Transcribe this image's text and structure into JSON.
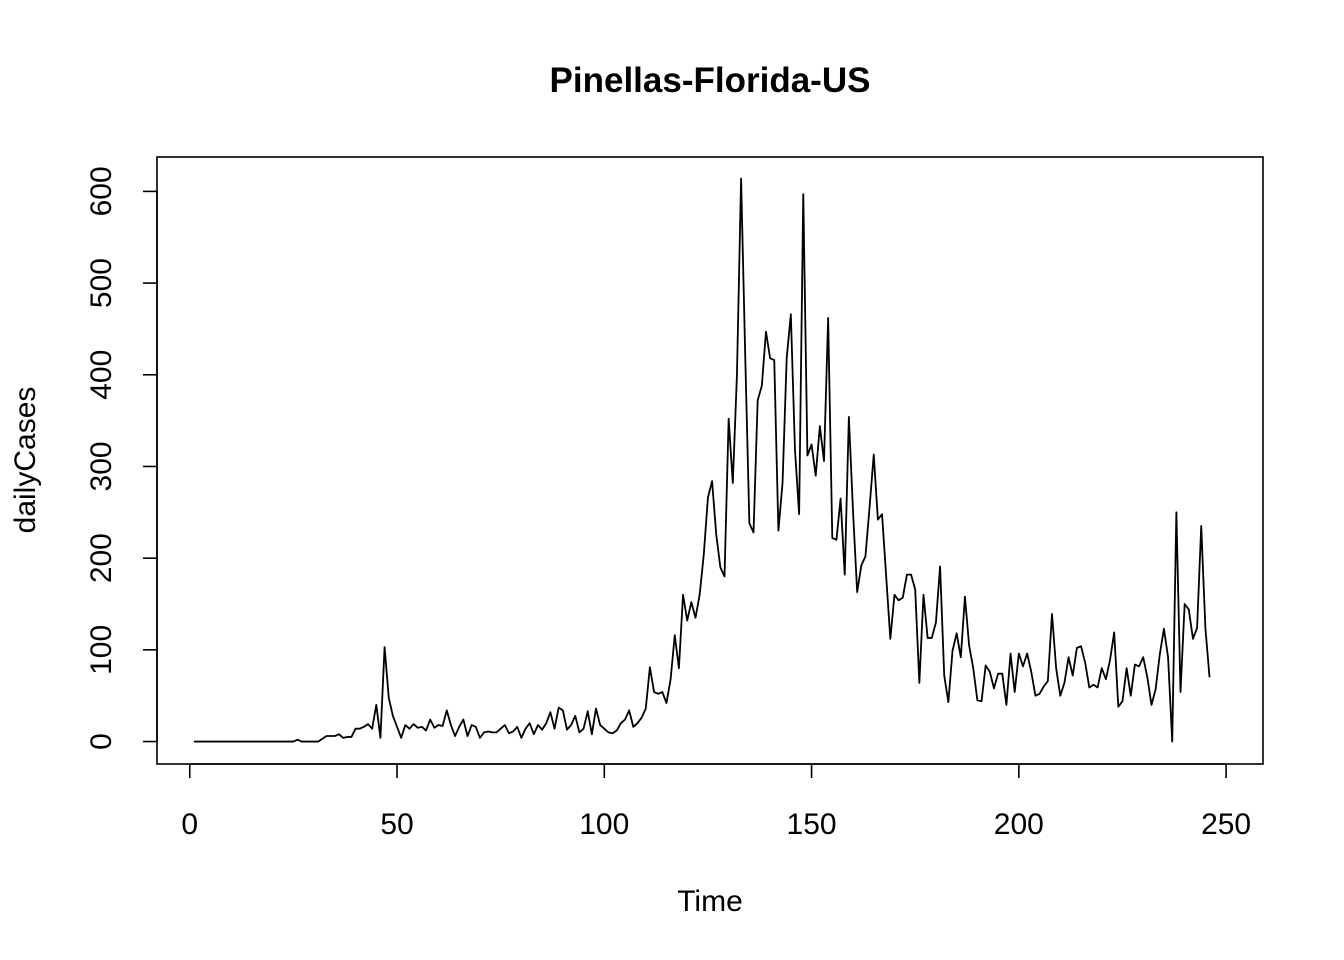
{
  "chart_data": {
    "type": "line",
    "title": "Pinellas-Florida-US",
    "xlabel": "Time",
    "ylabel": "dailyCases",
    "xlim": [
      -7.9,
      258.9
    ],
    "ylim": [
      -24.5,
      637.5
    ],
    "x_ticks": [
      0,
      50,
      100,
      150,
      200,
      250
    ],
    "y_ticks": [
      0,
      100,
      200,
      300,
      400,
      500,
      600
    ],
    "x_tick_labels": [
      "0",
      "50",
      "100",
      "150",
      "200",
      "250"
    ],
    "y_tick_labels": [
      "0",
      "100",
      "200",
      "300",
      "400",
      "500",
      "600"
    ],
    "grid": false,
    "legend": "none",
    "line_color": "#000000",
    "series": [
      {
        "x_start": 1,
        "x_step": 1,
        "values": [
          0,
          0,
          0,
          0,
          0,
          0,
          0,
          0,
          0,
          0,
          0,
          0,
          0,
          0,
          0,
          0,
          0,
          0,
          0,
          0,
          0,
          0,
          0,
          0,
          0,
          2,
          0,
          0,
          0,
          0,
          0,
          3,
          6,
          6,
          6,
          8,
          4,
          5,
          5,
          14,
          14,
          16,
          19,
          14,
          40,
          4,
          103,
          48,
          28,
          16,
          4,
          18,
          14,
          19,
          15,
          16,
          12,
          24,
          15,
          18,
          17,
          34,
          18,
          6,
          16,
          24,
          6,
          18,
          16,
          4,
          10,
          11,
          10,
          10,
          14,
          18,
          9,
          11,
          16,
          4,
          14,
          20,
          8,
          18,
          13,
          20,
          32,
          14,
          37,
          34,
          13,
          18,
          28,
          10,
          14,
          33,
          8,
          36,
          18,
          14,
          10,
          9,
          12,
          20,
          24,
          34,
          16,
          20,
          26,
          36,
          81,
          54,
          52,
          54,
          42,
          68,
          116,
          80,
          160,
          132,
          152,
          135,
          160,
          204,
          266,
          284,
          226,
          190,
          180,
          352,
          282,
          400,
          614,
          420,
          238,
          228,
          372,
          388,
          447,
          418,
          416,
          230,
          282,
          418,
          466,
          318,
          248,
          597,
          312,
          324,
          290,
          344,
          306,
          462,
          222,
          220,
          265,
          182,
          354,
          251,
          163,
          192,
          202,
          256,
          313,
          242,
          248,
          180,
          112,
          160,
          154,
          157,
          182,
          182,
          166,
          64,
          160,
          113,
          113,
          130,
          191,
          72,
          43,
          99,
          118,
          92,
          158,
          105,
          80,
          45,
          44,
          83,
          76,
          58,
          74,
          74,
          40,
          96,
          54,
          96,
          82,
          96,
          76,
          50,
          52,
          60,
          66,
          139,
          80,
          50,
          64,
          92,
          72,
          102,
          104,
          86,
          59,
          62,
          59,
          80,
          68,
          89,
          119,
          38,
          44,
          80,
          50,
          84,
          82,
          92,
          70,
          40,
          57,
          95,
          123,
          92,
          0,
          250,
          54,
          150,
          144,
          112,
          124,
          235,
          124,
          70
        ]
      }
    ]
  }
}
